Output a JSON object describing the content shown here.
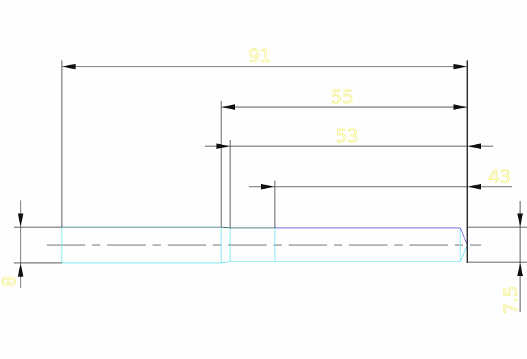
{
  "drawing": {
    "dimensions": {
      "overall_length": "91",
      "length_55": "55",
      "length_53": "53",
      "length_43": "43",
      "left_diameter": "8",
      "right_diameter": "7.5"
    },
    "colors": {
      "background": "#fefefe",
      "dimension_text": "#f4f07a",
      "lines": "#333333",
      "outline_cyan": "#5fe8f0",
      "outline_blue": "#5a4fd6"
    }
  }
}
